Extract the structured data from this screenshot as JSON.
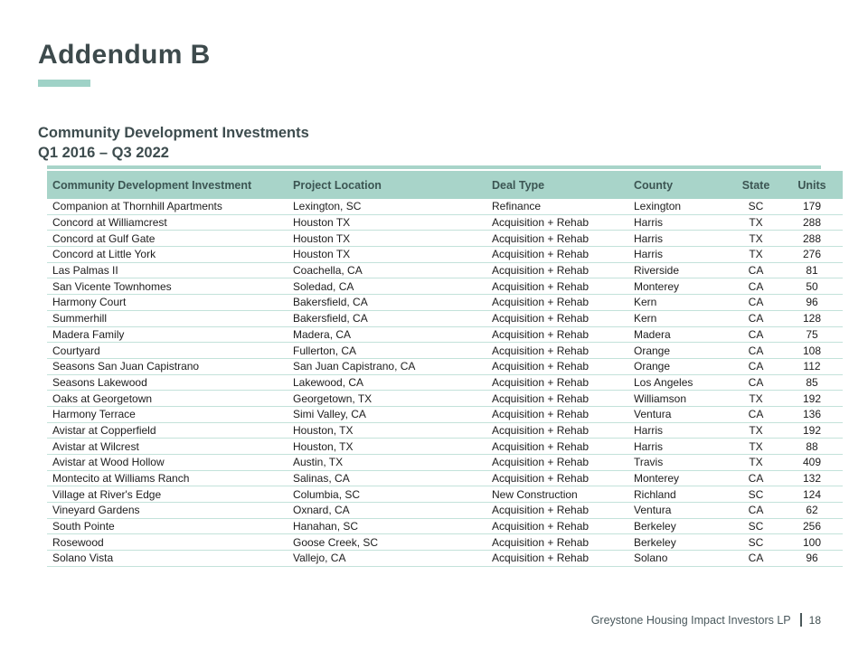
{
  "page": {
    "title": "Addendum B",
    "subtitle_line1": "Community Development Investments",
    "subtitle_line2": "Q1 2016 – Q3 2022"
  },
  "colors": {
    "accent_teal": "#9FD2C7",
    "table_header_bg": "#A8D4C9",
    "row_divider": "#C3E2DA",
    "heading_text": "#3D4A4C",
    "footer_text": "#49585C"
  },
  "table": {
    "columns": [
      "Community Development Investment",
      "Project Location",
      "Deal Type",
      "County",
      "State",
      "Units"
    ],
    "rows": [
      [
        "Companion at Thornhill Apartments",
        "Lexington, SC",
        "Refinance",
        "Lexington",
        "SC",
        "179"
      ],
      [
        "Concord at Williamcrest",
        "Houston TX",
        "Acquisition + Rehab",
        "Harris",
        "TX",
        "288"
      ],
      [
        "Concord at Gulf Gate",
        "Houston TX",
        "Acquisition + Rehab",
        "Harris",
        "TX",
        "288"
      ],
      [
        "Concord at Little York",
        "Houston TX",
        "Acquisition + Rehab",
        "Harris",
        "TX",
        "276"
      ],
      [
        "Las Palmas II",
        "Coachella, CA",
        "Acquisition + Rehab",
        "Riverside",
        "CA",
        "81"
      ],
      [
        "San Vicente Townhomes",
        "Soledad, CA",
        "Acquisition + Rehab",
        "Monterey",
        "CA",
        "50"
      ],
      [
        "Harmony Court",
        "Bakersfield, CA",
        "Acquisition + Rehab",
        "Kern",
        "CA",
        "96"
      ],
      [
        "Summerhill",
        "Bakersfield, CA",
        "Acquisition + Rehab",
        "Kern",
        "CA",
        "128"
      ],
      [
        "Madera Family",
        "Madera, CA",
        "Acquisition + Rehab",
        "Madera",
        "CA",
        "75"
      ],
      [
        "Courtyard",
        "Fullerton, CA",
        "Acquisition + Rehab",
        "Orange",
        "CA",
        "108"
      ],
      [
        "Seasons San Juan Capistrano",
        "San Juan Capistrano, CA",
        "Acquisition + Rehab",
        "Orange",
        "CA",
        "112"
      ],
      [
        "Seasons Lakewood",
        "Lakewood, CA",
        "Acquisition + Rehab",
        "Los Angeles",
        "CA",
        "85"
      ],
      [
        "Oaks at Georgetown",
        "Georgetown, TX",
        "Acquisition + Rehab",
        "Williamson",
        "TX",
        "192"
      ],
      [
        "Harmony Terrace",
        "Simi Valley, CA",
        "Acquisition + Rehab",
        "Ventura",
        "CA",
        "136"
      ],
      [
        "Avistar at Copperfield",
        "Houston, TX",
        "Acquisition + Rehab",
        "Harris",
        "TX",
        "192"
      ],
      [
        "Avistar at Wilcrest",
        "Houston, TX",
        "Acquisition + Rehab",
        "Harris",
        "TX",
        "88"
      ],
      [
        "Avistar at Wood Hollow",
        "Austin, TX",
        "Acquisition + Rehab",
        "Travis",
        "TX",
        "409"
      ],
      [
        "Montecito at Williams Ranch",
        "Salinas, CA",
        "Acquisition + Rehab",
        "Monterey",
        "CA",
        "132"
      ],
      [
        "Village at River's Edge",
        "Columbia, SC",
        "New Construction",
        "Richland",
        "SC",
        "124"
      ],
      [
        "Vineyard Gardens",
        "Oxnard, CA",
        "Acquisition + Rehab",
        "Ventura",
        "CA",
        "62"
      ],
      [
        "South Pointe",
        "Hanahan, SC",
        "Acquisition + Rehab",
        "Berkeley",
        "SC",
        "256"
      ],
      [
        "Rosewood",
        "Goose Creek, SC",
        "Acquisition + Rehab",
        "Berkeley",
        "SC",
        "100"
      ],
      [
        "Solano Vista",
        "Vallejo, CA",
        "Acquisition + Rehab",
        "Solano",
        "CA",
        "96"
      ]
    ]
  },
  "footer": {
    "company": "Greystone Housing Impact Investors LP",
    "page_number": "18"
  }
}
